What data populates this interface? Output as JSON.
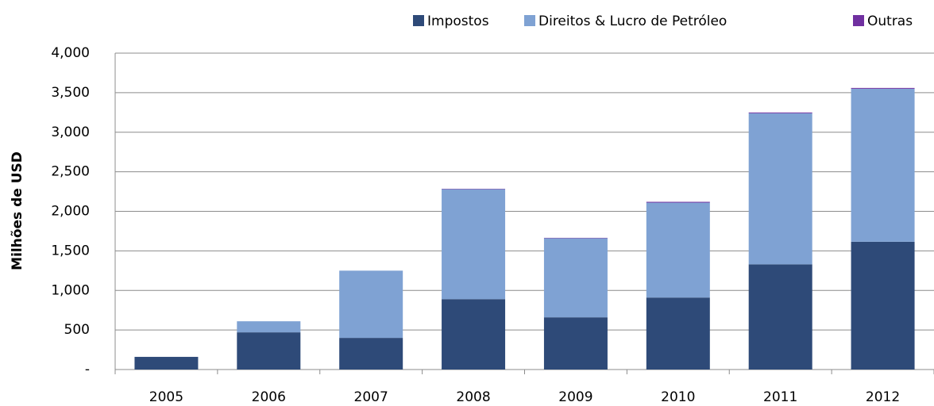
{
  "chart_data": {
    "type": "stacked_bar",
    "ylabel": "Milhões de USD",
    "categories": [
      "2005",
      "2006",
      "2007",
      "2008",
      "2009",
      "2010",
      "2011",
      "2012"
    ],
    "series": [
      {
        "name": "Impostos",
        "color": "#2e4a78",
        "values": [
          160,
          470,
          400,
          890,
          660,
          910,
          1330,
          1615
        ]
      },
      {
        "name": "Direitos & Lucro de Petróleo",
        "color": "#7fa2d3",
        "values": [
          0,
          140,
          850,
          1390,
          1000,
          1200,
          1910,
          1935
        ]
      },
      {
        "name": "Outras",
        "color": "#7030a0",
        "values": [
          0,
          0,
          0,
          5,
          5,
          10,
          10,
          10
        ]
      }
    ],
    "ylim": [
      0,
      4000
    ],
    "yticks": [
      {
        "value": 0,
        "label": "-"
      },
      500,
      {
        "value": 1000,
        "label": "1,000"
      },
      {
        "value": 1500,
        "label": "1,500"
      },
      {
        "value": 2000,
        "label": "2,000"
      },
      {
        "value": 2500,
        "label": "2,500"
      },
      {
        "value": 3000,
        "label": "3,000"
      },
      {
        "value": 3500,
        "label": "3,500"
      },
      {
        "value": 4000,
        "label": "4,000"
      }
    ],
    "grid": true,
    "legend": "top-right"
  }
}
